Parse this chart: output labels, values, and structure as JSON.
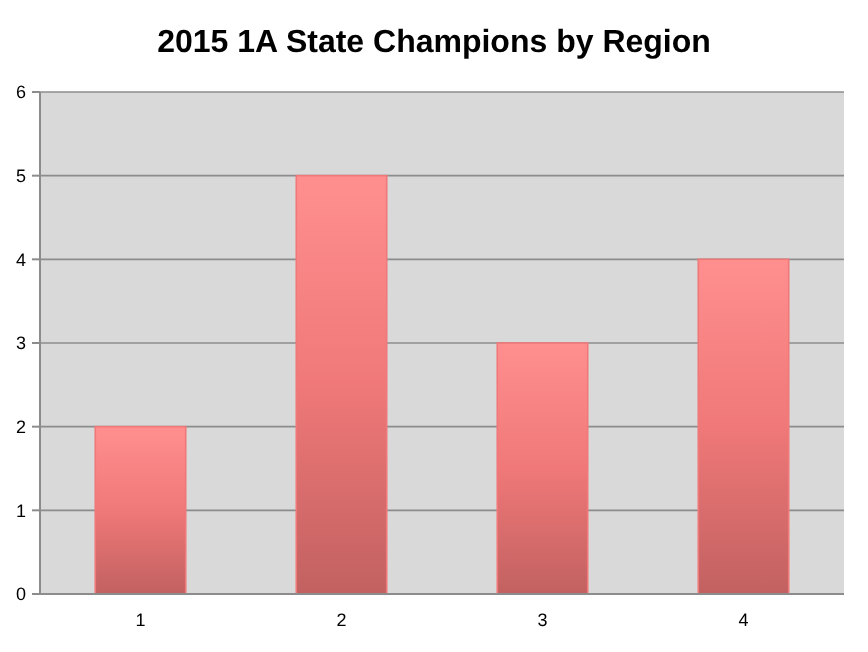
{
  "chart_data": {
    "type": "bar",
    "title": "2015 1A State Champions by Region",
    "categories": [
      "1",
      "2",
      "3",
      "4"
    ],
    "values": [
      2,
      5,
      3,
      4
    ],
    "color": "#f07878",
    "ylim": [
      0,
      6
    ],
    "yticks": [
      0,
      1,
      2,
      3,
      4,
      5,
      6
    ],
    "grid": "y"
  }
}
